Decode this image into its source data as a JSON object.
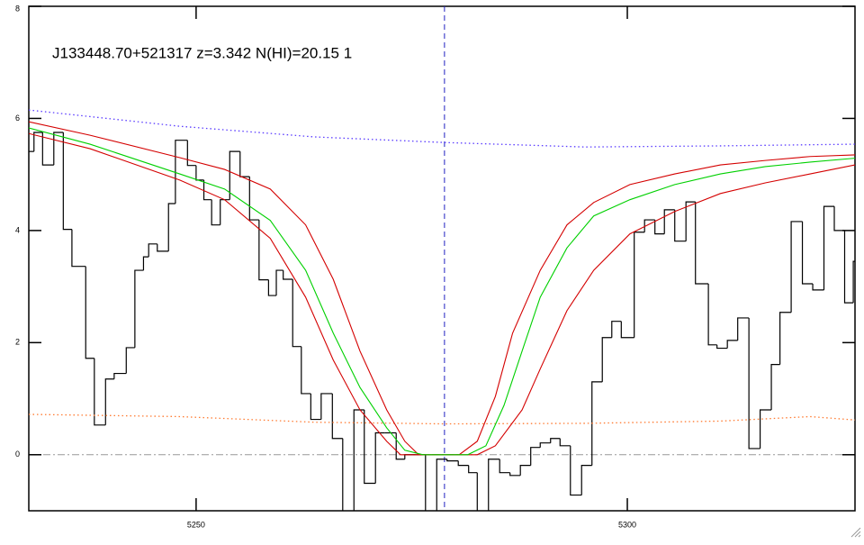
{
  "chart_data": {
    "type": "line",
    "title": "J133448.70+521317 z=3.342 N(HI)=20.15 1",
    "xlim": [
      5230.6,
      5326.4
    ],
    "ylim": [
      -1,
      8
    ],
    "xticks": [
      5250,
      5300
    ],
    "yticks": [
      0,
      2,
      4,
      6,
      8
    ],
    "hline": 0,
    "vline": 5278.8,
    "series": [
      {
        "style": "step",
        "color": "#000000",
        "bins": [
          5230.6,
          5231.2,
          5232.2,
          5233.5,
          5234.6,
          5235.6,
          5237.2,
          5238.2,
          5239.5,
          5240.5,
          5241.9,
          5242.9,
          5243.9,
          5244.5,
          5245.5,
          5246.8,
          5247.6,
          5249.0,
          5250.0,
          5250.9,
          5251.8,
          5252.8,
          5253.9,
          5255.1,
          5256.2,
          5257.3,
          5258.4,
          5259.3,
          5260.1,
          5261.2,
          5262.2,
          5263.3,
          5264.5,
          5265.8,
          5267.0,
          5268.3,
          5269.5,
          5270.8,
          5271.9,
          5273.2,
          5274.2,
          5275.5,
          5276.6,
          5277.9,
          5279.1,
          5280.4,
          5281.6,
          5282.6,
          5283.9,
          5285.2,
          5286.4,
          5287.6,
          5288.8,
          5289.9,
          5291.1,
          5292.2,
          5293.4,
          5294.7,
          5295.9,
          5297.1,
          5298.2,
          5299.3,
          5300.8,
          5302.0,
          5303.2,
          5304.3,
          5305.5,
          5306.8,
          5307.9,
          5309.4,
          5310.4,
          5311.6,
          5312.8,
          5314.1,
          5315.4,
          5316.7,
          5317.7,
          5319.0,
          5320.3,
          5321.5,
          5322.8,
          5324.0,
          5325.2,
          5326.2,
          5326.4
        ],
        "values": [
          5.41,
          5.75,
          5.17,
          5.75,
          4.02,
          3.36,
          1.72,
          0.53,
          1.35,
          1.45,
          1.91,
          3.29,
          3.53,
          3.76,
          3.63,
          4.48,
          5.61,
          5.16,
          4.9,
          4.55,
          4.1,
          4.55,
          5.41,
          4.96,
          4.19,
          3.12,
          2.84,
          3.29,
          3.13,
          1.93,
          1.09,
          0.63,
          1.09,
          0.29,
          -1.2,
          0.8,
          -0.51,
          0.39,
          0.39,
          -0.08,
          0,
          0,
          -1.2,
          -0.08,
          -0.11,
          -0.19,
          -0.32,
          -1.1,
          -0.08,
          -0.32,
          -0.37,
          -0.19,
          0.13,
          0.21,
          0.29,
          0.16,
          -0.72,
          -0.19,
          1.3,
          2.09,
          2.38,
          2.09,
          3.97,
          4.19,
          3.94,
          4.37,
          3.81,
          4.51,
          3.05,
          1.96,
          1.9,
          2.04,
          2.44,
          0.11,
          0.8,
          1.61,
          2.54,
          4.16,
          3.05,
          2.94,
          4.43,
          4.0,
          2.71,
          3.45
        ]
      },
      {
        "style": "dotted",
        "color": "#5a3cff",
        "x": [
          5230.6,
          5248.1,
          5263.7,
          5278.8,
          5295.1,
          5310.8,
          5326.4
        ],
        "values": [
          6.15,
          5.86,
          5.67,
          5.57,
          5.49,
          5.51,
          5.54
        ]
      },
      {
        "style": "dotted",
        "color": "#ff7a30",
        "x": [
          5230.6,
          5248.1,
          5263.7,
          5278.8,
          5295.1,
          5310.8,
          5321.2,
          5326.4
        ],
        "values": [
          0.72,
          0.68,
          0.58,
          0.55,
          0.56,
          0.6,
          0.68,
          0.62
        ]
      },
      {
        "style": "solid",
        "color": "#d40000",
        "x": [
          5230.6,
          5237.7,
          5248.1,
          5253.3,
          5258.6,
          5262.7,
          5265.9,
          5269.0,
          5272.1,
          5274.2,
          5275.8,
          5280.5,
          5282.6,
          5284.7,
          5286.7,
          5289.9,
          5293.0,
          5296.1,
          5300.3,
          5305.5,
          5310.8,
          5316.0,
          5321.2,
          5326.4
        ],
        "values": [
          5.94,
          5.7,
          5.3,
          5.09,
          4.74,
          4.1,
          3.13,
          1.85,
          0.8,
          0.24,
          0,
          0,
          0.24,
          1.04,
          2.17,
          3.29,
          4.1,
          4.5,
          4.82,
          5.01,
          5.17,
          5.25,
          5.32,
          5.35
        ]
      },
      {
        "style": "solid",
        "color": "#d40000",
        "x": [
          5230.6,
          5237.7,
          5248.1,
          5253.3,
          5258.6,
          5262.7,
          5265.9,
          5269.0,
          5272.1,
          5273.7,
          5282.6,
          5284.7,
          5287.8,
          5289.9,
          5293.0,
          5296.1,
          5300.3,
          5305.5,
          5310.8,
          5316.0,
          5321.2,
          5326.4
        ],
        "values": [
          5.73,
          5.46,
          4.9,
          4.55,
          3.86,
          2.81,
          1.69,
          0.8,
          0.24,
          0,
          0,
          0.16,
          0.8,
          1.53,
          2.57,
          3.29,
          3.94,
          4.34,
          4.66,
          4.85,
          5.01,
          5.17
        ]
      },
      {
        "style": "solid",
        "color": "#00d000",
        "x": [
          5230.6,
          5237.7,
          5248.1,
          5253.3,
          5258.6,
          5262.7,
          5265.9,
          5269.0,
          5272.1,
          5274.2,
          5276.3,
          5281.5,
          5283.6,
          5285.7,
          5287.8,
          5289.9,
          5293.0,
          5296.1,
          5300.3,
          5305.5,
          5310.8,
          5316.0,
          5321.2,
          5326.4
        ],
        "values": [
          5.83,
          5.54,
          5.01,
          4.74,
          4.18,
          3.29,
          2.17,
          1.2,
          0.48,
          0.08,
          0,
          0,
          0.16,
          0.88,
          1.85,
          2.81,
          3.69,
          4.26,
          4.55,
          4.82,
          5.01,
          5.14,
          5.22,
          5.29
        ]
      }
    ]
  }
}
